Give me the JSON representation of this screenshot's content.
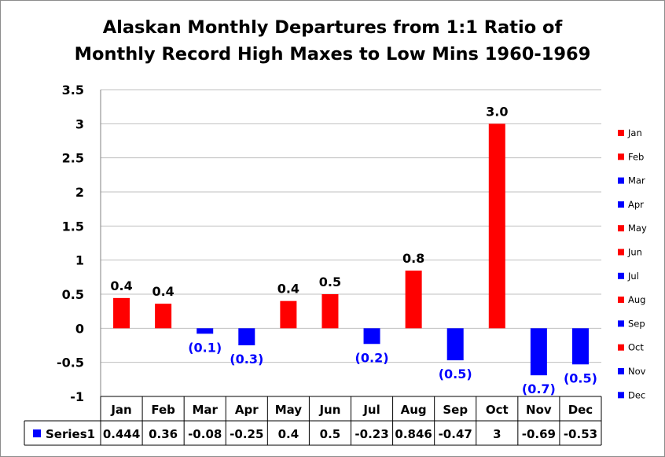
{
  "chart_data": {
    "type": "bar",
    "title_line1": "Alaskan Monthly Departures from 1:1 Ratio of",
    "title_line2": "Monthly Record High Maxes to Low Mins 1960-1969",
    "categories": [
      "Jan",
      "Feb",
      "Mar",
      "Apr",
      "May",
      "Jun",
      "Jul",
      "Aug",
      "Sep",
      "Oct",
      "Nov",
      "Dec"
    ],
    "series": [
      {
        "name": "Series1",
        "values": [
          0.444,
          0.36,
          -0.08,
          -0.25,
          0.4,
          0.5,
          -0.23,
          0.846,
          -0.47,
          3,
          -0.69,
          -0.53
        ],
        "value_text": [
          "0.444",
          "0.36",
          "-0.08",
          "-0.25",
          "0.4",
          "0.5",
          "-0.23",
          "0.846",
          "-0.47",
          "3",
          "-0.69",
          "-0.53"
        ]
      }
    ],
    "data_labels": [
      "0.4",
      "0.4",
      "(0.1)",
      "(0.3)",
      "0.4",
      "0.5",
      "(0.2)",
      "0.8",
      "(0.5)",
      "3.0",
      "(0.7)",
      "(0.5)"
    ],
    "y_ticks": [
      "3.5",
      "3",
      "2.5",
      "2",
      "1.5",
      "1",
      "0.5",
      "0",
      "-0.5",
      "-1"
    ],
    "ylim": [
      -1,
      3.5
    ],
    "grid": true,
    "legend_position": "right",
    "legend_items": [
      "Jan",
      "Feb",
      "Mar",
      "Apr",
      "May",
      "Jun",
      "Jul",
      "Aug",
      "Sep",
      "Oct",
      "Nov",
      "Dec"
    ],
    "data_table": true,
    "colors": {
      "positive": "#ff0000",
      "negative": "#0000ff",
      "negative_label": "#0000ff",
      "positive_label": "#000000",
      "gridline": "#bfbfbf",
      "series_key": "#0000ff"
    }
  }
}
